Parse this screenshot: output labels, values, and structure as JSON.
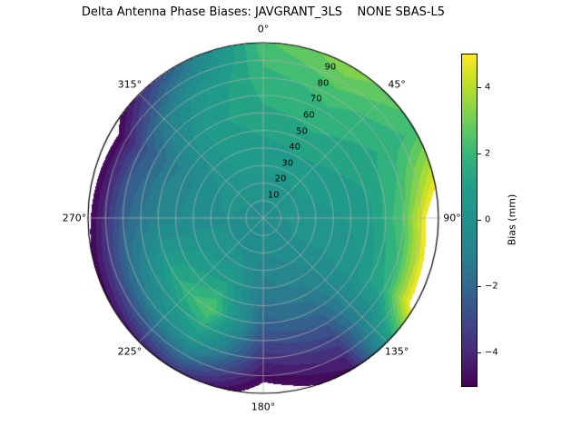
{
  "chart_data": {
    "type": "heatmap",
    "subtype": "filled-contour",
    "projection": "polar",
    "title": "Delta Antenna Phase Biases: JAVGRANT_3LS    NONE SBAS-L5",
    "azimuth_labels": [
      "0°",
      "45°",
      "90°",
      "135°",
      "180°",
      "225°",
      "270°",
      "315°"
    ],
    "azimuth_angles_deg": [
      0,
      45,
      90,
      135,
      180,
      225,
      270,
      315
    ],
    "radial_tick_labels": [
      "10",
      "20",
      "30",
      "40",
      "50",
      "60",
      "70",
      "80",
      "90"
    ],
    "radial_tick_values": [
      10,
      20,
      30,
      40,
      50,
      60,
      70,
      80,
      90
    ],
    "radial_axis_note": "zenith angle, 0 at center, rings every 10",
    "contour_step_mm": 0.5,
    "grid_color": "#b0b0b0",
    "colorbar": {
      "label": "Bias (mm)",
      "ticks": [
        4,
        2,
        0,
        -2,
        -4
      ],
      "tick_labels": [
        "4",
        "2",
        "0",
        "−2",
        "−4"
      ],
      "range": [
        -5,
        5
      ],
      "colormap": "viridis"
    },
    "colormap_stops": [
      "#440154",
      "#482878",
      "#3e4989",
      "#31688e",
      "#26828e",
      "#21918c",
      "#1f9e89",
      "#35b779",
      "#6ece58",
      "#b5de2b",
      "#fde725"
    ],
    "grid": {
      "azimuths_deg": [
        0,
        30,
        60,
        90,
        120,
        150,
        180,
        210,
        240,
        270,
        300,
        330
      ],
      "zenith_deg": [
        0,
        18,
        36,
        54,
        72,
        90
      ],
      "bias_mm": [
        [
          -0.3,
          -0.3,
          -0.3,
          -0.3,
          -0.3,
          -0.3,
          -0.3,
          -0.3,
          -0.3,
          -0.3,
          -0.3,
          -0.3
        ],
        [
          0.4,
          0.4,
          0.4,
          0.2,
          0.0,
          -0.3,
          -0.5,
          -0.2,
          0.0,
          0.0,
          0.2,
          0.4
        ],
        [
          0.8,
          1.0,
          0.8,
          0.4,
          0.0,
          -0.8,
          -1.2,
          0.8,
          0.6,
          -0.3,
          -0.3,
          0.6
        ],
        [
          1.4,
          1.6,
          1.2,
          0.8,
          0.4,
          -1.8,
          -2.2,
          2.6,
          1.2,
          -0.8,
          -1.2,
          0.8
        ],
        [
          1.8,
          2.2,
          1.6,
          2.6,
          1.6,
          -3.2,
          -3.8,
          0.5,
          -1.2,
          -2.2,
          -2.8,
          0.2
        ],
        [
          2.4,
          3.4,
          2.2,
          6.5,
          5.8,
          -4.6,
          -5.6,
          -3.5,
          -4.6,
          -5.2,
          -5.6,
          -2.0
        ]
      ],
      "masked_note": "values outside [-5,5] render as white (unfilled)"
    }
  }
}
